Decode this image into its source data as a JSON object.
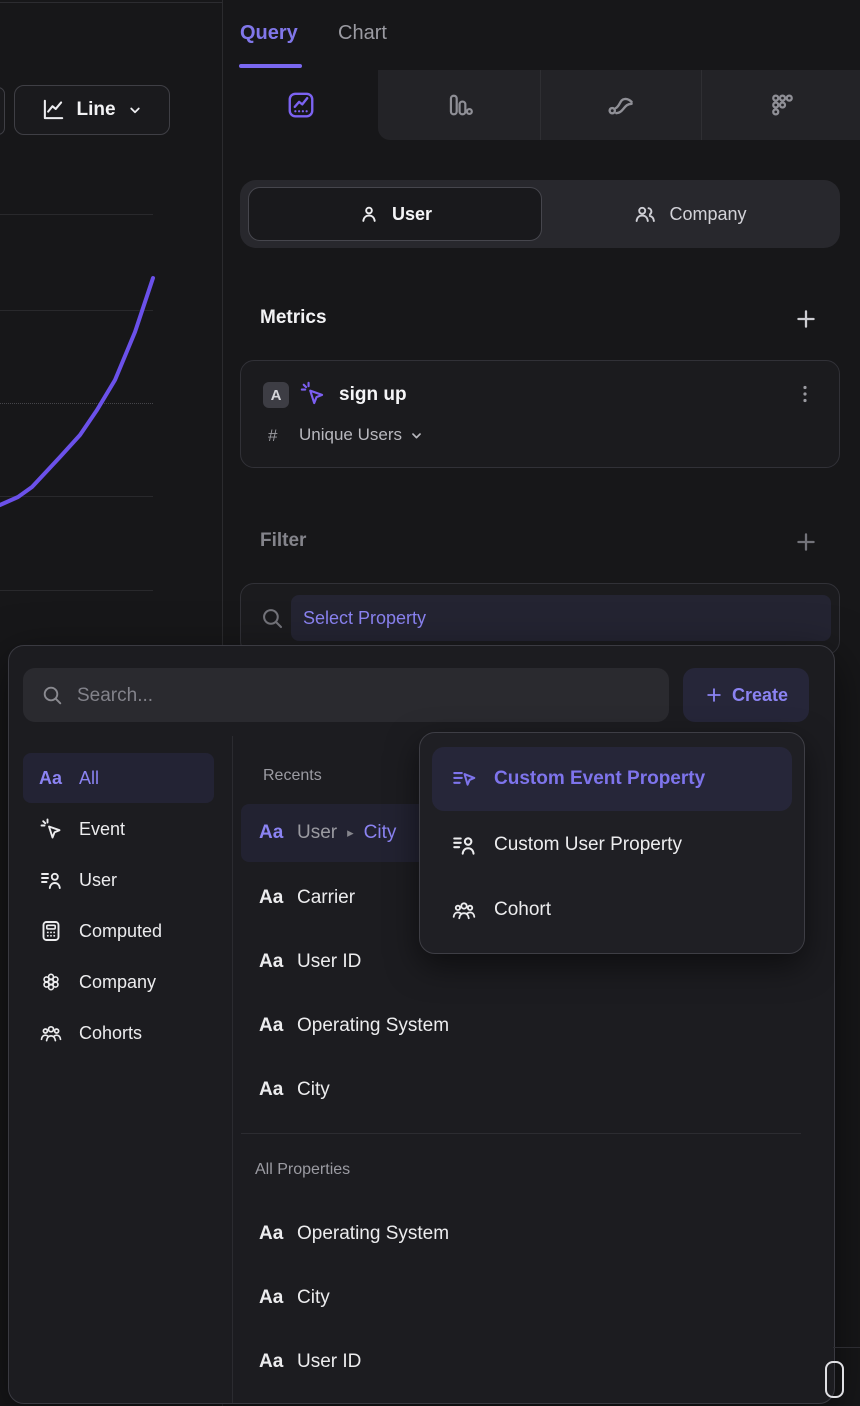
{
  "header": {
    "query_tab": "Query",
    "chart_tab": "Chart"
  },
  "chart_area": {
    "chart_type_button": "Line",
    "line_color": "#6b51ea",
    "trend_line_points": [
      [
        0,
        245
      ],
      [
        18,
        237
      ],
      [
        32,
        227
      ],
      [
        60,
        197
      ],
      [
        80,
        175
      ],
      [
        97,
        150
      ],
      [
        115,
        120
      ],
      [
        135,
        72
      ],
      [
        153,
        18
      ]
    ]
  },
  "builder": {
    "entity_toggle": {
      "user": "User",
      "company": "Company"
    },
    "metrics": {
      "title": "Metrics"
    },
    "metric_card": {
      "series_letter": "A",
      "event_name": "sign up",
      "hash": "#",
      "aggregation": "Unique Users"
    },
    "filter": {
      "title": "Filter",
      "property_placeholder": "Select Property"
    }
  },
  "picker": {
    "search_placeholder": "Search...",
    "create_label": "Create",
    "glyphs": {
      "aa": "Aa",
      "breadcrumb_arrow": "▸"
    },
    "categories": [
      {
        "label": "All",
        "icon": "aa",
        "active": true
      },
      {
        "label": "Event",
        "icon": "event-spark"
      },
      {
        "label": "User",
        "icon": "list-person"
      },
      {
        "label": "Computed",
        "icon": "calculator"
      },
      {
        "label": "Company",
        "icon": "company-cluster"
      },
      {
        "label": "Cohorts",
        "icon": "people-group"
      }
    ],
    "recents": {
      "title": "Recents",
      "selected_item": {
        "parent": "User",
        "child": "City"
      },
      "items": [
        {
          "label": "Carrier"
        },
        {
          "label": "User ID"
        },
        {
          "label": "Operating System"
        },
        {
          "label": "City"
        }
      ]
    },
    "all_properties": {
      "title": "All Properties",
      "items": [
        {
          "label": "Operating System"
        },
        {
          "label": "City"
        },
        {
          "label": "User ID"
        }
      ]
    },
    "create_menu": {
      "items": [
        {
          "label": "Custom Event Property",
          "icon": "list-cursor",
          "active": true
        },
        {
          "label": "Custom User Property",
          "icon": "list-person"
        },
        {
          "label": "Cohort",
          "icon": "people-group"
        }
      ]
    }
  },
  "colors": {
    "accent_purple": "#8b83f2",
    "line_purple": "#6b51ea",
    "highlight_bg": "#232334"
  }
}
